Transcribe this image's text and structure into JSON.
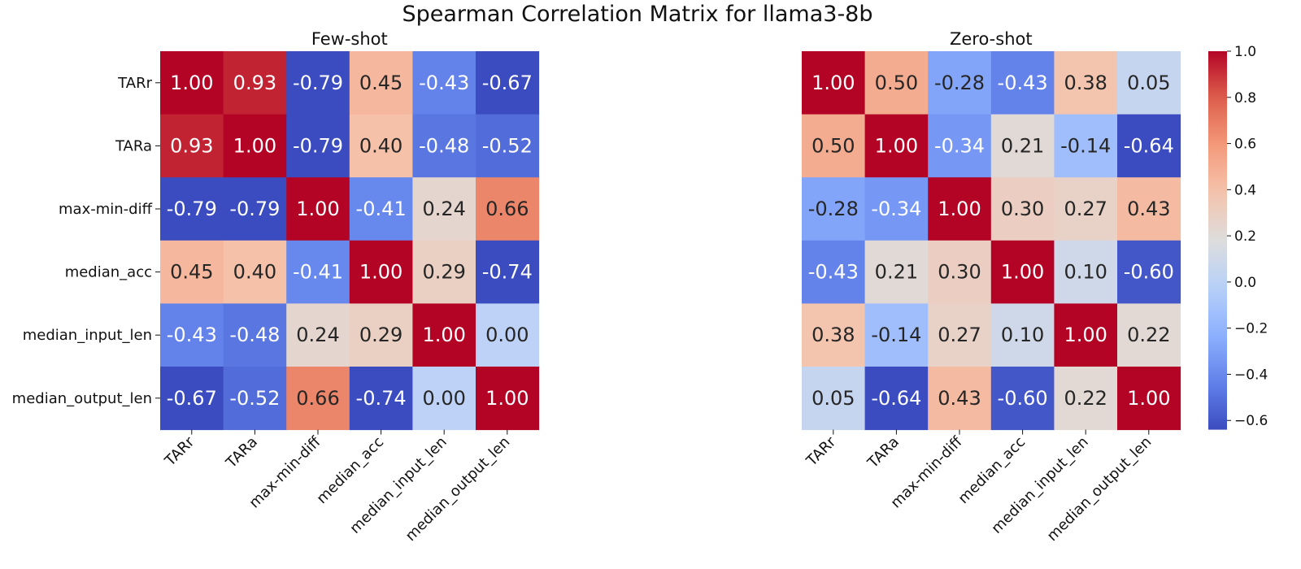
{
  "chart_data": {
    "type": "heatmap",
    "title": "Spearman Correlation Matrix for llama3-8b",
    "colormap": "coolwarm",
    "color_range": [
      -0.64,
      1.0
    ],
    "colorbar_ticks": [
      1.0,
      0.8,
      0.6,
      0.4,
      0.2,
      0.0,
      -0.2,
      -0.4,
      -0.6
    ],
    "colorbar_tick_labels": [
      "1.0",
      "0.8",
      "0.6",
      "0.4",
      "0.2",
      "0.0",
      "−0.2",
      "−0.4",
      "−0.6"
    ],
    "labels": [
      "TARr",
      "TARa",
      "max-min-diff",
      "median_acc",
      "median_input_len",
      "median_output_len"
    ],
    "panels": [
      {
        "subtitle": "Few-shot",
        "show_y_labels": true,
        "matrix": [
          [
            1.0,
            0.93,
            -0.79,
            0.45,
            -0.43,
            -0.67
          ],
          [
            0.93,
            1.0,
            -0.79,
            0.4,
            -0.48,
            -0.52
          ],
          [
            -0.79,
            -0.79,
            1.0,
            -0.41,
            0.24,
            0.66
          ],
          [
            0.45,
            0.4,
            -0.41,
            1.0,
            0.29,
            -0.74
          ],
          [
            -0.43,
            -0.48,
            0.24,
            0.29,
            1.0,
            0.0
          ],
          [
            -0.67,
            -0.52,
            0.66,
            -0.74,
            0.0,
            1.0
          ]
        ]
      },
      {
        "subtitle": "Zero-shot",
        "show_y_labels": false,
        "matrix": [
          [
            1.0,
            0.5,
            -0.28,
            -0.43,
            0.38,
            0.05
          ],
          [
            0.5,
            1.0,
            -0.34,
            0.21,
            -0.14,
            -0.64
          ],
          [
            -0.28,
            -0.34,
            1.0,
            0.3,
            0.27,
            0.43
          ],
          [
            -0.43,
            0.21,
            0.3,
            1.0,
            0.1,
            -0.6
          ],
          [
            0.38,
            -0.14,
            0.27,
            0.1,
            1.0,
            0.22
          ],
          [
            0.05,
            -0.64,
            0.43,
            -0.6,
            0.22,
            1.0
          ]
        ]
      }
    ]
  }
}
